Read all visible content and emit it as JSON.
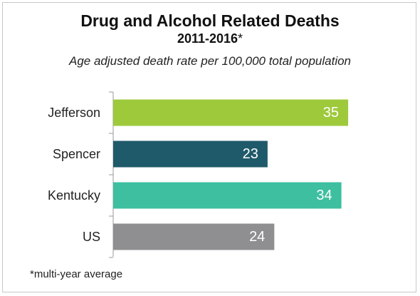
{
  "chart_data": {
    "type": "bar",
    "orientation": "horizontal",
    "title": "Drug and Alcohol Related Deaths",
    "subtitle": "2011-2016",
    "subtitle_marker": "*",
    "ylabel": "Age adjusted death rate per 100,000 total population",
    "categories": [
      "Jefferson",
      "Spencer",
      "Kentucky",
      "US"
    ],
    "values": [
      35,
      23,
      34,
      24
    ],
    "bar_colors": [
      "#9dc93b",
      "#1f5a6a",
      "#3dbfa0",
      "#8f8f91"
    ],
    "xlim": [
      0,
      40
    ],
    "grid": false,
    "legend": "none",
    "footnote": "*multi-year average"
  }
}
